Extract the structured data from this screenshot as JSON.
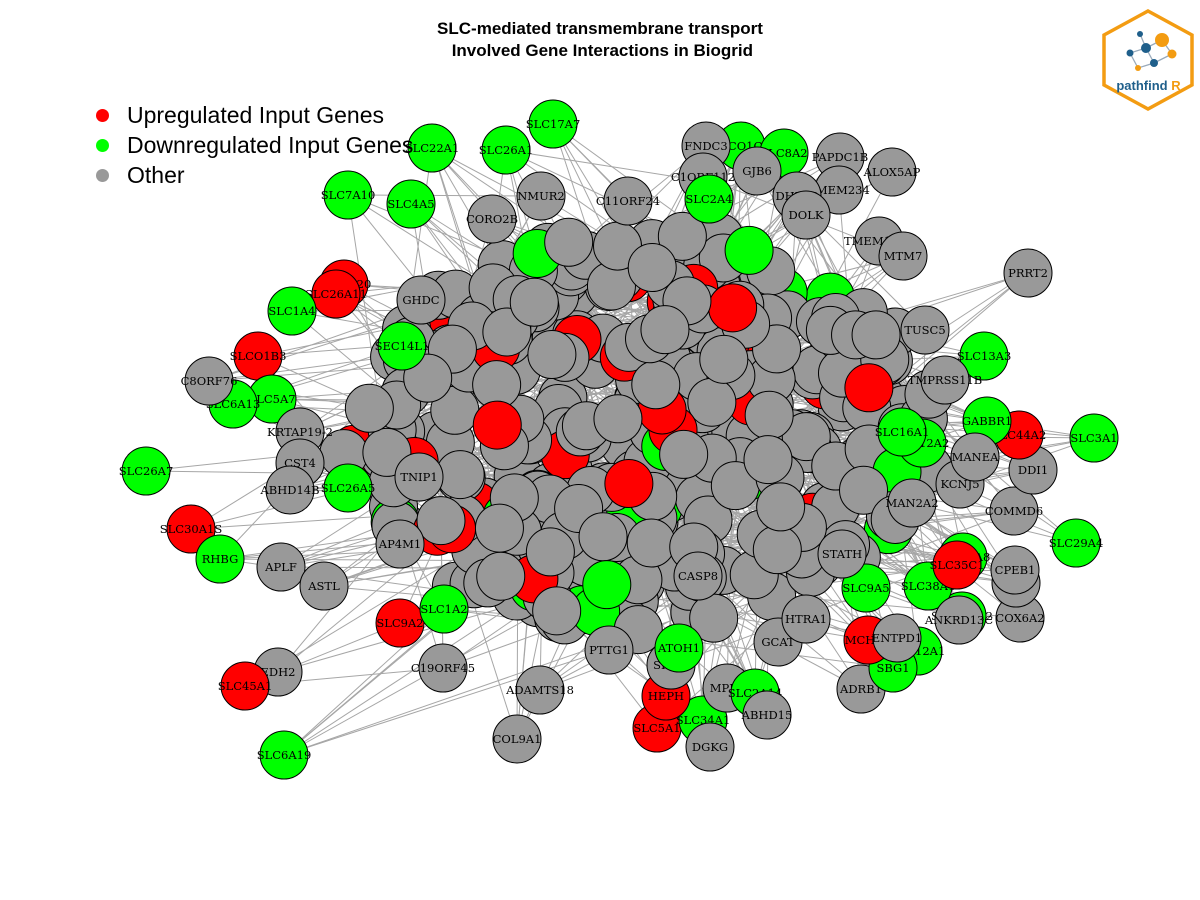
{
  "title": {
    "line1": "SLC-mediated transmembrane transport",
    "line2": " Involved Gene Interactions in Biogrid"
  },
  "legend": {
    "items": [
      {
        "label": "Upregulated Input Genes",
        "color": "#ff0000"
      },
      {
        "label": "Downregulated Input Genes",
        "color": "#00ff00"
      },
      {
        "label": "Other",
        "color": "#999999"
      }
    ]
  },
  "logo": {
    "text_a": "pathfind",
    "text_b": "R",
    "brand_color": "#f39c12",
    "text_color": "#1f5f8b"
  },
  "colors": {
    "up": "#ff0000",
    "down": "#00ff00",
    "other": "#999999",
    "edge": "#a6a6a6"
  },
  "nodes": [
    {
      "id": "SLC17A7",
      "type": "down"
    },
    {
      "id": "SLC26A1",
      "type": "down"
    },
    {
      "id": "SLC22A1",
      "type": "down"
    },
    {
      "id": "SLCO1C1",
      "type": "down"
    },
    {
      "id": "SLC8A2",
      "type": "down"
    },
    {
      "id": "FNDC3",
      "type": "other"
    },
    {
      "id": "PAPDC1B",
      "type": "other"
    },
    {
      "id": "ALOX5AP",
      "type": "other"
    },
    {
      "id": "TMEM234",
      "type": "other"
    },
    {
      "id": "C1ORF112",
      "type": "other"
    },
    {
      "id": "GJB6",
      "type": "other"
    },
    {
      "id": "NMUR2",
      "type": "other"
    },
    {
      "id": "SLC7A10",
      "type": "down"
    },
    {
      "id": "SLC4A5",
      "type": "down"
    },
    {
      "id": "CORO2B",
      "type": "other"
    },
    {
      "id": "C11ORF24",
      "type": "other"
    },
    {
      "id": "SLC2A4",
      "type": "down"
    },
    {
      "id": "DHRS9",
      "type": "other"
    },
    {
      "id": "DOLK",
      "type": "other"
    },
    {
      "id": "TMEM167B",
      "type": "other"
    },
    {
      "id": "MTM7",
      "type": "other"
    },
    {
      "id": "PRRT2",
      "type": "other"
    },
    {
      "id": "SLC6A20",
      "type": "up"
    },
    {
      "id": "SLC26A11",
      "type": "up"
    },
    {
      "id": "SLC1A4",
      "type": "down"
    },
    {
      "id": "SLCO1B3",
      "type": "up"
    },
    {
      "id": "SLC5A7",
      "type": "down"
    },
    {
      "id": "SLC6A13",
      "type": "down"
    },
    {
      "id": "C8ORF76",
      "type": "other"
    },
    {
      "id": "KRTAP19-2",
      "type": "other"
    },
    {
      "id": "SLC26A7",
      "type": "down"
    },
    {
      "id": "CST4",
      "type": "other"
    },
    {
      "id": "ABHD14B",
      "type": "other"
    },
    {
      "id": "SLC26A5",
      "type": "down"
    },
    {
      "id": "SLC30A1S",
      "type": "up"
    },
    {
      "id": "RHBG",
      "type": "down"
    },
    {
      "id": "APLF",
      "type": "other"
    },
    {
      "id": "ASTL",
      "type": "other"
    },
    {
      "id": "SLC9A2",
      "type": "up"
    },
    {
      "id": "SLC1A2",
      "type": "down"
    },
    {
      "id": "EDH2",
      "type": "other"
    },
    {
      "id": "SLC45A1",
      "type": "up"
    },
    {
      "id": "SLC6A19",
      "type": "down"
    },
    {
      "id": "C19ORF45",
      "type": "other"
    },
    {
      "id": "COL9A1",
      "type": "other"
    },
    {
      "id": "SLC5A1",
      "type": "up"
    },
    {
      "id": "SLC34A1",
      "type": "down"
    },
    {
      "id": "DGKG",
      "type": "other"
    },
    {
      "id": "MPP2",
      "type": "other"
    },
    {
      "id": "SLC2A14",
      "type": "down"
    },
    {
      "id": "ABHD15",
      "type": "other"
    },
    {
      "id": "HEPH",
      "type": "up"
    },
    {
      "id": "SHBG",
      "type": "other"
    },
    {
      "id": "PTTG1",
      "type": "other"
    },
    {
      "id": "ADAMTS18",
      "type": "other"
    },
    {
      "id": "GCAT",
      "type": "other"
    },
    {
      "id": "HTRA1",
      "type": "other"
    },
    {
      "id": "ADRB1",
      "type": "other"
    },
    {
      "id": "SLC12A1",
      "type": "down"
    },
    {
      "id": "SBG1",
      "type": "down"
    },
    {
      "id": "SLC22A12",
      "type": "down"
    },
    {
      "id": "COX6A2",
      "type": "other"
    },
    {
      "id": "NYX",
      "type": "other"
    },
    {
      "id": "CPEB1",
      "type": "other"
    },
    {
      "id": "SLC29A4",
      "type": "down"
    },
    {
      "id": "COMMD6",
      "type": "other"
    },
    {
      "id": "DDI1",
      "type": "other"
    },
    {
      "id": "SLC3A1",
      "type": "down"
    },
    {
      "id": "SLC44A2",
      "type": "up"
    },
    {
      "id": "SLC13A3",
      "type": "down"
    },
    {
      "id": "SLC16A8",
      "type": "down"
    },
    {
      "id": "SLC38A1",
      "type": "down"
    },
    {
      "id": "SLC9A5",
      "type": "down"
    },
    {
      "id": "STATH",
      "type": "other"
    },
    {
      "id": "MAN2A2",
      "type": "other"
    },
    {
      "id": "SLC35C1",
      "type": "up"
    },
    {
      "id": "TUSC5",
      "type": "other"
    },
    {
      "id": "GABBR1",
      "type": "down"
    },
    {
      "id": "ATOH1",
      "type": "down"
    },
    {
      "id": "SLC12A2",
      "type": "down"
    },
    {
      "id": "MCHR2",
      "type": "up"
    },
    {
      "id": "ENTPD1",
      "type": "other"
    },
    {
      "id": "KCNJ5",
      "type": "other"
    },
    {
      "id": "ANKRD13C",
      "type": "other"
    },
    {
      "id": "SLC16A1",
      "type": "down"
    },
    {
      "id": "TMPRSS11B",
      "type": "other"
    },
    {
      "id": "MANEA",
      "type": "other"
    },
    {
      "id": "SEC14L1",
      "type": "down"
    },
    {
      "id": "GHDC",
      "type": "other"
    },
    {
      "id": "TNIP1",
      "type": "other"
    },
    {
      "id": "CASP8",
      "type": "other"
    },
    {
      "id": "AP4M1",
      "type": "other"
    }
  ]
}
